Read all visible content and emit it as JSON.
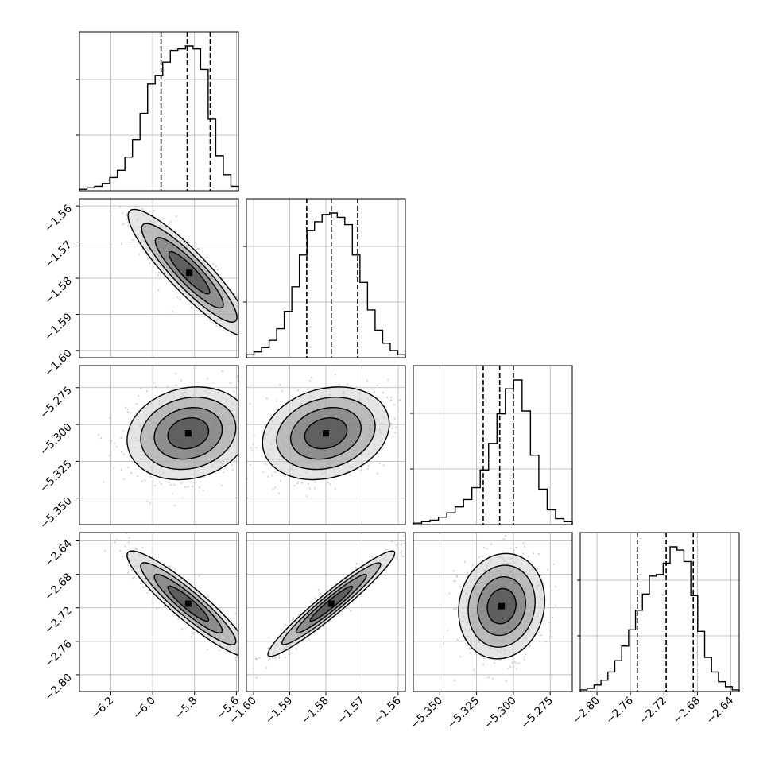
{
  "chart_data": {
    "type": "corner",
    "title": "",
    "parameters": [
      {
        "name": "",
        "range": [
          -6.35,
          -5.59
        ],
        "ticks": [
          -6.2,
          -6.0,
          -5.8,
          -5.6
        ],
        "tick_labels": [
          "−6.2",
          "−6.0",
          "−5.8",
          "−5.6"
        ],
        "quantiles": [
          -5.96,
          -5.835,
          -5.725
        ],
        "hist": [
          1,
          2,
          3,
          5,
          9,
          14,
          23,
          35,
          53,
          73,
          79,
          88,
          96,
          97,
          99,
          97,
          83,
          49,
          24,
          11,
          3
        ]
      },
      {
        "name": "",
        "range": [
          -1.602,
          -1.558
        ],
        "ticks": [
          -1.6,
          -1.59,
          -1.58,
          -1.57,
          -1.56
        ],
        "tick_labels": [
          "−1.60",
          "−1.59",
          "−1.58",
          "−1.57",
          "−1.56"
        ],
        "quantiles": [
          -1.5853,
          -1.5785,
          -1.5712
        ],
        "hist": [
          2,
          4,
          7,
          12,
          20,
          32,
          49,
          71,
          88,
          94,
          99,
          100,
          97,
          92,
          71,
          52,
          33,
          19,
          10,
          5,
          2
        ]
      },
      {
        "name": "",
        "range": [
          -5.368,
          -5.26
        ],
        "ticks": [
          -5.35,
          -5.325,
          -5.3,
          -5.275
        ],
        "tick_labels": [
          "−5.350",
          "−5.325",
          "−5.300",
          "−5.275"
        ],
        "quantiles": [
          -5.3205,
          -5.3093,
          -5.3
        ],
        "hist": [
          1,
          2,
          3,
          5,
          8,
          12,
          17,
          25,
          37,
          55,
          75,
          92,
          98,
          77,
          47,
          24,
          10,
          4,
          2
        ]
      },
      {
        "name": "",
        "range": [
          -2.82,
          -2.63
        ],
        "ticks": [
          -2.8,
          -2.76,
          -2.72,
          -2.68,
          -2.64
        ],
        "tick_labels": [
          "−2.80",
          "−2.76",
          "−2.72",
          "−2.68",
          "−2.64"
        ],
        "y_tick_labels": [
          "−2.64",
          "−2.68",
          "−2.72",
          "−2.76",
          "−2.80"
        ],
        "quantiles": [
          -2.7518,
          -2.7173,
          -2.6849
        ],
        "hist": [
          1,
          2,
          4,
          7,
          12,
          19,
          28,
          38,
          50,
          60,
          71,
          72,
          79,
          89,
          87,
          80,
          59,
          37,
          21,
          12,
          6,
          3,
          1
        ]
      }
    ],
    "pairs": [
      {
        "x": 0,
        "y": 1,
        "mean": [
          -5.825,
          -1.5785
        ],
        "sd": [
          0.13,
          0.0078
        ],
        "rho": -0.9
      },
      {
        "x": 0,
        "y": 2,
        "mean": [
          -5.83,
          -5.306
        ],
        "sd": [
          0.13,
          0.014
        ],
        "rho": 0.15
      },
      {
        "x": 1,
        "y": 2,
        "mean": [
          -1.58,
          -5.306
        ],
        "sd": [
          0.0078,
          0.014
        ],
        "rho": 0.2
      },
      {
        "x": 0,
        "y": 3,
        "mean": [
          -5.83,
          -2.715
        ],
        "sd": [
          0.13,
          0.028
        ],
        "rho": -0.92
      },
      {
        "x": 1,
        "y": 3,
        "mean": [
          -1.5785,
          -2.715
        ],
        "sd": [
          0.0078,
          0.028
        ],
        "rho": 0.96
      },
      {
        "x": 2,
        "y": 3,
        "mean": [
          -5.308,
          -2.718
        ],
        "sd": [
          0.013,
          0.028
        ],
        "rho": 0.1
      }
    ],
    "grid": true,
    "colors": {
      "hist": "#000000",
      "contour": "#000000",
      "points": "#bdbdbd",
      "grid": "#b0b0b0"
    }
  }
}
